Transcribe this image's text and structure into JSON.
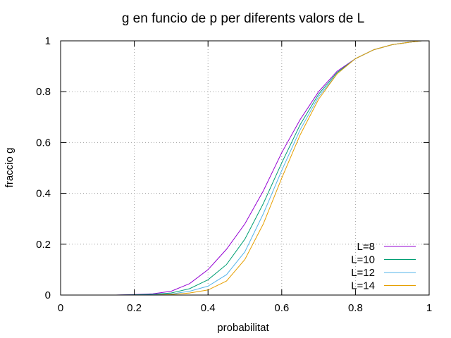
{
  "chart_data": {
    "type": "line",
    "title": "g en funcio de p per diferents valors de L",
    "xlabel": "probabilitat",
    "ylabel": "fraccio g",
    "xlim": [
      0,
      1
    ],
    "ylim": [
      0,
      1
    ],
    "xticks": [
      0,
      0.2,
      0.4,
      0.6,
      0.8,
      1
    ],
    "yticks": [
      0,
      0.2,
      0.4,
      0.6,
      0.8,
      1
    ],
    "xtick_labels": [
      "0",
      "0.2",
      "0.4",
      "0.6",
      "0.8",
      "1"
    ],
    "ytick_labels": [
      "0",
      "0.2",
      "0.4",
      "0.6",
      "0.8",
      "1"
    ],
    "grid": true,
    "legend_position": "bottom-right",
    "x": [
      0.15,
      0.2,
      0.25,
      0.3,
      0.35,
      0.4,
      0.45,
      0.5,
      0.55,
      0.6,
      0.65,
      0.7,
      0.75,
      0.8,
      0.85,
      0.9,
      0.95,
      0.98
    ],
    "series": [
      {
        "name": "L=8",
        "color": "#9400d3",
        "values": [
          0.0,
          0.002,
          0.005,
          0.015,
          0.045,
          0.1,
          0.18,
          0.28,
          0.41,
          0.56,
          0.69,
          0.8,
          0.88,
          0.93,
          0.965,
          0.985,
          0.995,
          1.0
        ]
      },
      {
        "name": "L=10",
        "color": "#009e73",
        "values": [
          0.0,
          0.001,
          0.003,
          0.008,
          0.025,
          0.06,
          0.12,
          0.22,
          0.36,
          0.52,
          0.67,
          0.79,
          0.875,
          0.93,
          0.965,
          0.985,
          0.995,
          1.0
        ]
      },
      {
        "name": "L=12",
        "color": "#56b4e9",
        "values": [
          0.0,
          0.0,
          0.001,
          0.004,
          0.015,
          0.035,
          0.08,
          0.17,
          0.32,
          0.49,
          0.65,
          0.78,
          0.87,
          0.93,
          0.965,
          0.985,
          0.995,
          1.0
        ]
      },
      {
        "name": "L=14",
        "color": "#e69f00",
        "values": [
          0.0,
          0.0,
          0.0,
          0.002,
          0.008,
          0.02,
          0.055,
          0.14,
          0.28,
          0.46,
          0.63,
          0.77,
          0.87,
          0.93,
          0.965,
          0.985,
          0.995,
          1.0
        ]
      }
    ]
  }
}
